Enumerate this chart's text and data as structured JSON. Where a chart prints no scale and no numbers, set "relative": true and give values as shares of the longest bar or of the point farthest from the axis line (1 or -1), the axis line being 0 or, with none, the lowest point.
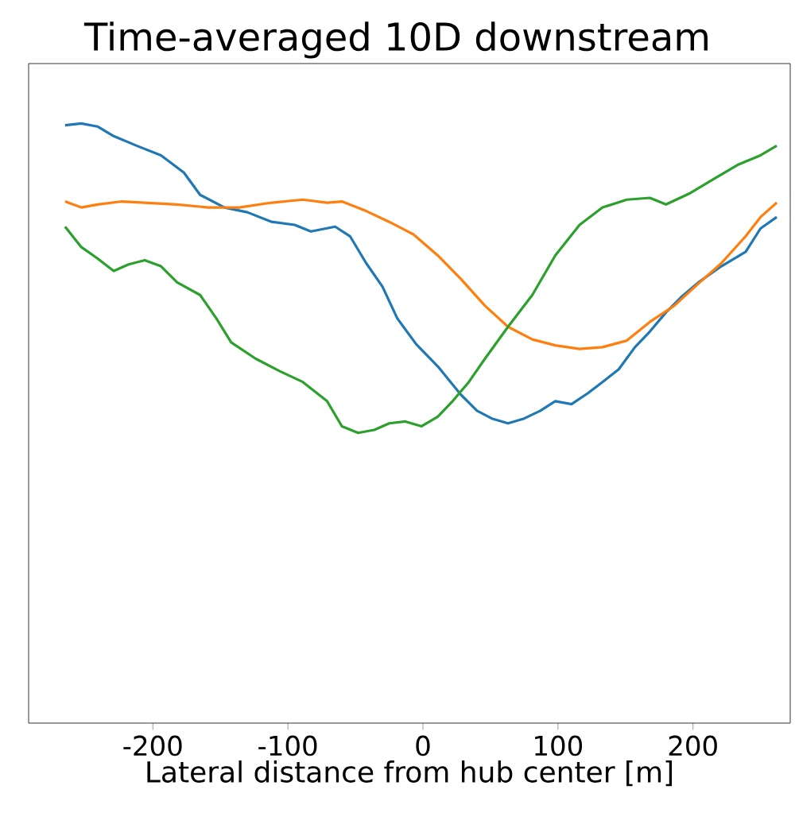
{
  "chart_data": {
    "type": "line",
    "title": "Time-averaged 10D downstream",
    "xlabel": "Lateral distance from hub center [m]",
    "relative": true,
    "xlim": [
      -292,
      272
    ],
    "xticks": [
      -200,
      -100,
      0,
      100,
      200
    ],
    "tick_labels": "x",
    "grid": false,
    "marker": "none",
    "line_style": "solid",
    "series": [
      {
        "color": "#1f77b4",
        "x": [
          -265,
          -253,
          -241,
          -229,
          -212,
          -194,
          -177,
          -165,
          -147,
          -130,
          -112,
          -95,
          -83,
          -65,
          -54,
          -42,
          -30,
          -19,
          -5,
          11,
          28,
          40,
          51,
          63,
          75,
          87,
          98,
          110,
          122,
          133,
          145,
          157,
          168,
          180,
          192,
          204,
          221,
          239,
          250,
          262
        ],
        "values": [
          0.997,
          1,
          0.995,
          0.979,
          0.963,
          0.947,
          0.918,
          0.881,
          0.86,
          0.852,
          0.836,
          0.831,
          0.82,
          0.828,
          0.812,
          0.767,
          0.728,
          0.675,
          0.632,
          0.595,
          0.548,
          0.521,
          0.508,
          0.5,
          0.508,
          0.521,
          0.537,
          0.532,
          0.55,
          0.569,
          0.59,
          0.627,
          0.653,
          0.685,
          0.712,
          0.735,
          0.762,
          0.786,
          0.825,
          0.844
        ]
      },
      {
        "color": "#ff7f0e",
        "x": [
          -265,
          -253,
          -241,
          -223,
          -206,
          -182,
          -159,
          -136,
          -112,
          -89,
          -71,
          -60,
          -42,
          -25,
          -7,
          11,
          28,
          46,
          63,
          81,
          98,
          116,
          133,
          151,
          168,
          186,
          204,
          221,
          239,
          250,
          262
        ],
        "values": [
          0.87,
          0.86,
          0.865,
          0.87,
          0.868,
          0.865,
          0.86,
          0.86,
          0.868,
          0.873,
          0.868,
          0.87,
          0.854,
          0.836,
          0.815,
          0.78,
          0.741,
          0.696,
          0.661,
          0.64,
          0.63,
          0.624,
          0.627,
          0.638,
          0.669,
          0.696,
          0.733,
          0.767,
          0.812,
          0.844,
          0.868
        ]
      },
      {
        "color": "#2ca02c",
        "x": [
          -265,
          -253,
          -241,
          -229,
          -218,
          -206,
          -194,
          -182,
          -165,
          -153,
          -142,
          -124,
          -106,
          -89,
          -71,
          -60,
          -48,
          -36,
          -25,
          -13,
          -1,
          11,
          22,
          34,
          46,
          63,
          81,
          98,
          116,
          133,
          151,
          168,
          180,
          198,
          215,
          233,
          250,
          262
        ],
        "values": [
          0.828,
          0.794,
          0.775,
          0.754,
          0.765,
          0.772,
          0.762,
          0.735,
          0.714,
          0.675,
          0.635,
          0.608,
          0.587,
          0.569,
          0.537,
          0.495,
          0.484,
          0.489,
          0.5,
          0.503,
          0.495,
          0.511,
          0.537,
          0.569,
          0.608,
          0.661,
          0.714,
          0.78,
          0.831,
          0.86,
          0.873,
          0.876,
          0.865,
          0.884,
          0.907,
          0.931,
          0.947,
          0.963
        ]
      }
    ]
  }
}
